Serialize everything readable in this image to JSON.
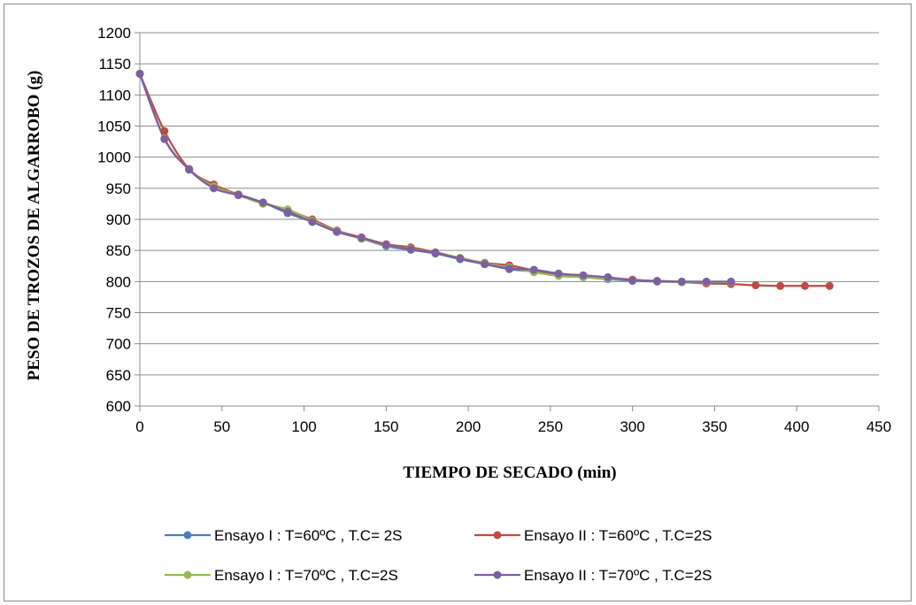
{
  "chart_data": {
    "type": "line",
    "title": "",
    "xlabel": "TIEMPO DE SECADO (min)",
    "ylabel": "PESO DE TROZOS DE ALGARROBO (g)",
    "xlim": [
      0,
      450
    ],
    "ylim": [
      600,
      1200
    ],
    "xticks": [
      0,
      50,
      100,
      150,
      200,
      250,
      300,
      350,
      400,
      450
    ],
    "yticks": [
      600,
      650,
      700,
      750,
      800,
      850,
      900,
      950,
      1000,
      1050,
      1100,
      1150,
      1200
    ],
    "grid": "horizontal",
    "legend_position": "bottom",
    "series": [
      {
        "name": "Ensayo I : T=60ºC , T.C= 2S",
        "color": "#4a7ebb",
        "x": [
          0,
          15,
          30,
          45,
          60,
          75,
          90,
          105,
          120,
          135,
          150,
          165,
          180,
          195,
          210,
          225,
          240,
          255,
          270,
          285,
          300,
          315,
          330
        ],
        "y": [
          1134,
          1030,
          980,
          951,
          940,
          927,
          910,
          896,
          880,
          869,
          857,
          851,
          845,
          836,
          828,
          820,
          816,
          810,
          807,
          804,
          801,
          800,
          799
        ]
      },
      {
        "name": "Ensayo II : T=60ºC , T.C=2S",
        "color": "#be4b48",
        "x": [
          0,
          15,
          30,
          45,
          60,
          75,
          90,
          105,
          120,
          135,
          150,
          165,
          180,
          195,
          210,
          225,
          240,
          255,
          270,
          285,
          300,
          315,
          330,
          345,
          360,
          375,
          390,
          405,
          420
        ],
        "y": [
          1134,
          1042,
          981,
          956,
          940,
          927,
          914,
          900,
          882,
          871,
          860,
          855,
          847,
          838,
          830,
          826,
          818,
          812,
          808,
          806,
          803,
          801,
          799,
          797,
          796,
          794,
          793,
          793,
          793
        ]
      },
      {
        "name": "Ensayo I : T=70ºC , T.C=2S",
        "color": "#98b954",
        "x": [
          0,
          15,
          30,
          45,
          60,
          75,
          90,
          105,
          120,
          135,
          150,
          165,
          180,
          195,
          210,
          225,
          240,
          255,
          270,
          285,
          300,
          315,
          330,
          345,
          360
        ],
        "y": [
          1134,
          1030,
          980,
          953,
          939,
          925,
          916,
          898,
          881,
          869,
          858,
          853,
          846,
          838,
          829,
          823,
          815,
          809,
          807,
          805,
          802,
          801,
          799,
          799,
          799
        ]
      },
      {
        "name": "Ensayo II : T=70ºC , T.C=2S",
        "color": "#7d60a0",
        "x": [
          0,
          15,
          30,
          45,
          60,
          75,
          90,
          105,
          120,
          135,
          150,
          165,
          180,
          195,
          210,
          225,
          240,
          255,
          270,
          285,
          300,
          315,
          330,
          345,
          360
        ],
        "y": [
          1134,
          1029,
          980,
          950,
          939,
          927,
          912,
          896,
          880,
          870,
          859,
          852,
          846,
          837,
          828,
          821,
          819,
          813,
          810,
          807,
          802,
          801,
          800,
          800,
          800
        ]
      }
    ]
  }
}
